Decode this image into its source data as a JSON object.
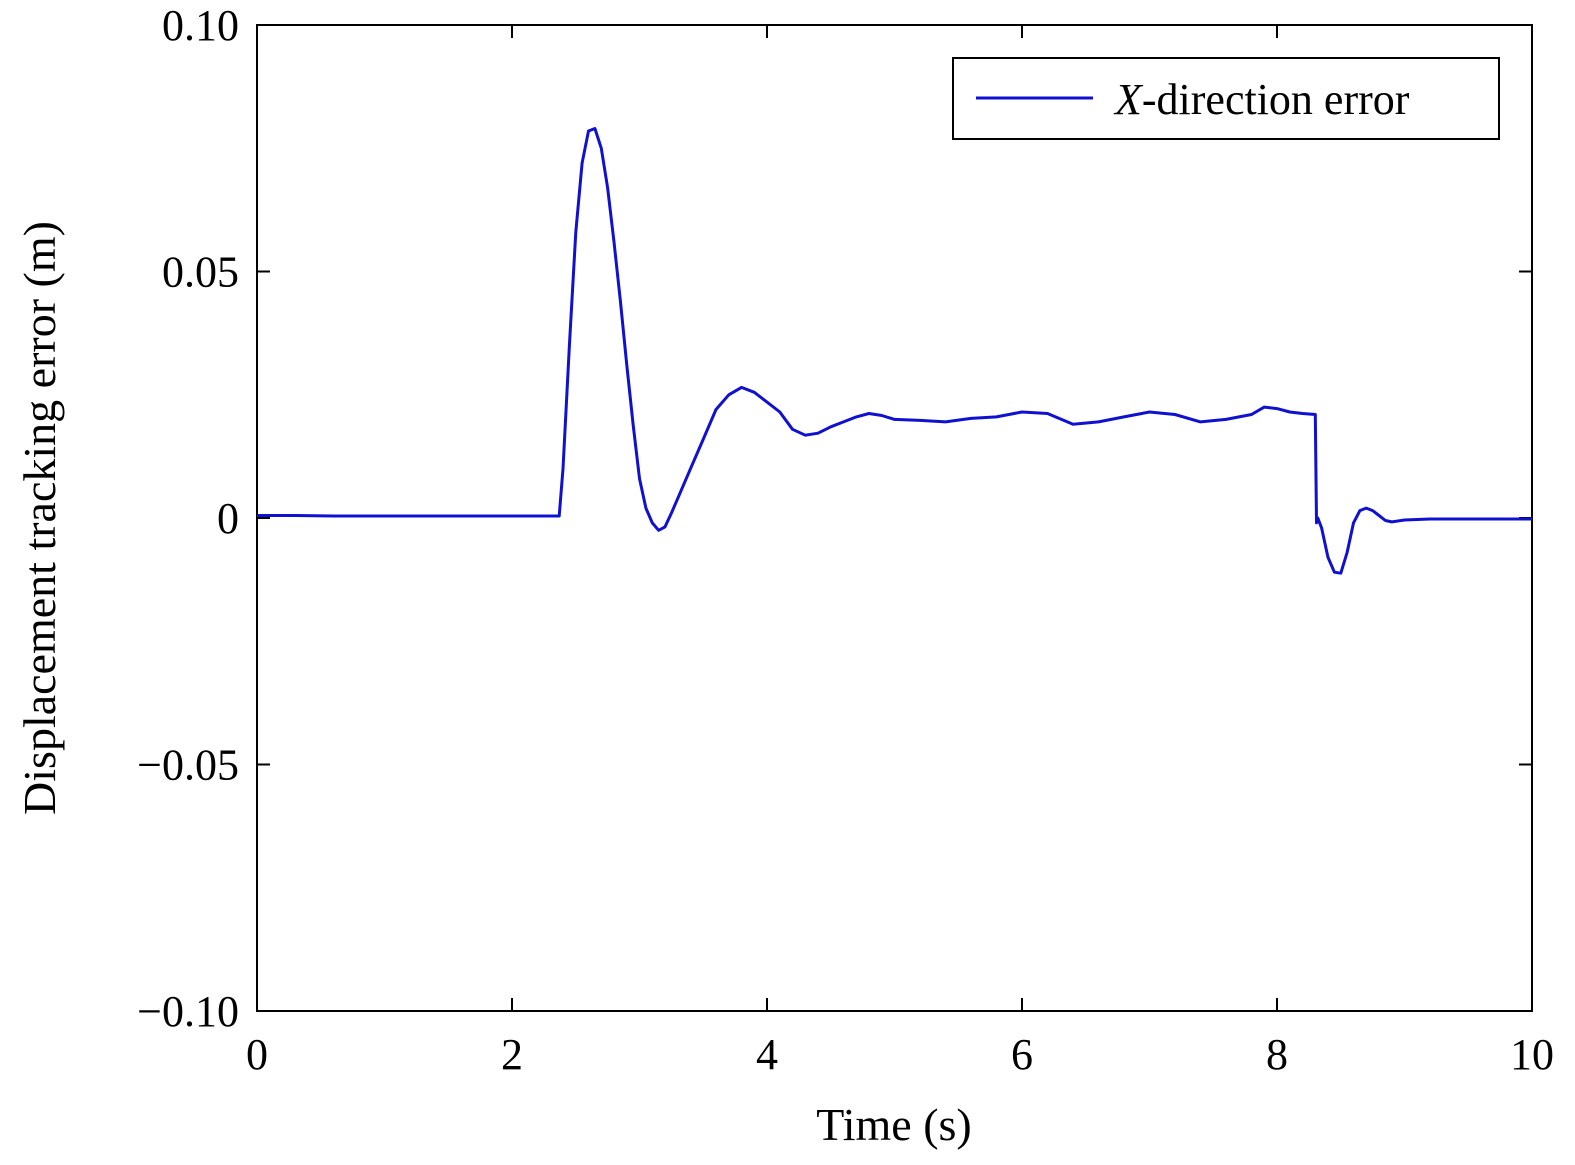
{
  "chart_data": {
    "type": "line",
    "xlabel": "Time (s)",
    "ylabel": "Displacement tracking error (m)",
    "xlim": [
      0,
      10
    ],
    "ylim": [
      -0.1,
      0.1
    ],
    "x_ticks": [
      0,
      2,
      4,
      6,
      8,
      10
    ],
    "x_tick_labels": [
      "0",
      "2",
      "4",
      "6",
      "8",
      "10"
    ],
    "y_ticks": [
      -0.1,
      -0.05,
      0,
      0.05,
      0.1
    ],
    "y_tick_labels": [
      "−0.10",
      "−0.05",
      "0",
      "0.05",
      "0.10"
    ],
    "grid": false,
    "legend_position": "top-right",
    "series": [
      {
        "name_prefix": "X",
        "name_suffix": "-direction error",
        "color": "#1010d0",
        "x": [
          0,
          0.3,
          0.6,
          1.0,
          1.4,
          1.8,
          2.2,
          2.37,
          2.4,
          2.45,
          2.5,
          2.55,
          2.6,
          2.65,
          2.7,
          2.75,
          2.8,
          2.85,
          2.9,
          2.95,
          3.0,
          3.05,
          3.1,
          3.15,
          3.2,
          3.25,
          3.3,
          3.4,
          3.5,
          3.6,
          3.7,
          3.8,
          3.9,
          4.0,
          4.1,
          4.2,
          4.3,
          4.4,
          4.5,
          4.6,
          4.7,
          4.8,
          4.9,
          5.0,
          5.2,
          5.4,
          5.6,
          5.8,
          6.0,
          6.2,
          6.4,
          6.6,
          6.8,
          7.0,
          7.2,
          7.4,
          7.6,
          7.8,
          7.9,
          8.0,
          8.1,
          8.2,
          8.3,
          8.31,
          8.32,
          8.35,
          8.4,
          8.45,
          8.5,
          8.55,
          8.6,
          8.65,
          8.7,
          8.75,
          8.8,
          8.85,
          8.9,
          9.0,
          9.2,
          9.5,
          9.8,
          10.0
        ],
        "y": [
          0.0005,
          0.0005,
          0.0004,
          0.0004,
          0.0004,
          0.0004,
          0.0004,
          0.0004,
          0.01,
          0.035,
          0.058,
          0.072,
          0.0785,
          0.079,
          0.075,
          0.067,
          0.056,
          0.044,
          0.031,
          0.019,
          0.008,
          0.002,
          -0.001,
          -0.0025,
          -0.0018,
          0.001,
          0.004,
          0.01,
          0.016,
          0.022,
          0.025,
          0.0265,
          0.0255,
          0.0235,
          0.0215,
          0.018,
          0.0168,
          0.0172,
          0.0185,
          0.0195,
          0.0205,
          0.0212,
          0.0208,
          0.02,
          0.0198,
          0.0195,
          0.0202,
          0.0205,
          0.0215,
          0.0212,
          0.019,
          0.0195,
          0.0205,
          0.0215,
          0.021,
          0.0195,
          0.02,
          0.021,
          0.0225,
          0.0222,
          0.0215,
          0.0212,
          0.021,
          -0.001,
          0.0,
          -0.002,
          -0.008,
          -0.011,
          -0.0112,
          -0.007,
          -0.001,
          0.0015,
          0.002,
          0.0015,
          0.0005,
          -0.0005,
          -0.0008,
          -0.0004,
          -0.0002,
          -0.0002,
          -0.0002,
          -0.0002
        ]
      }
    ]
  }
}
